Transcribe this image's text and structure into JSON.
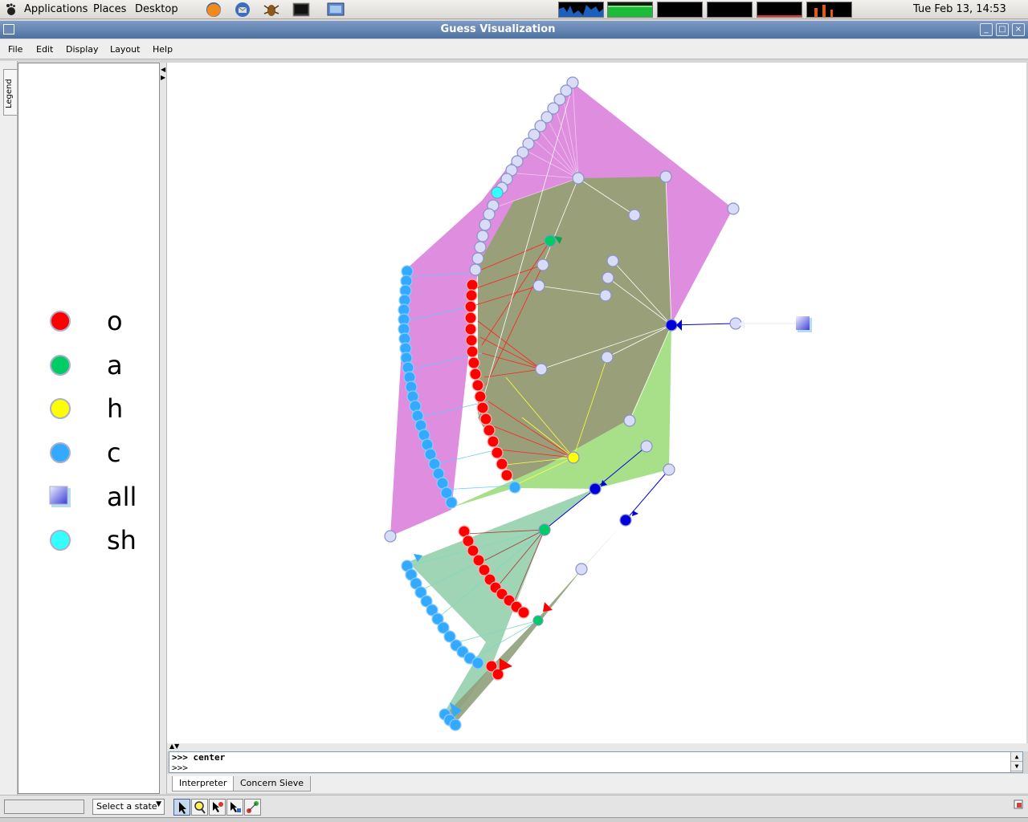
{
  "panel": {
    "menus": [
      "Applications",
      "Places",
      "Desktop"
    ],
    "clock": "Tue Feb 13, 14:53",
    "launchers": [
      "firefox-icon",
      "thunderbird-icon",
      "bug-icon",
      "terminal-icon",
      "screen-icon"
    ]
  },
  "window": {
    "title": "Guess Visualization"
  },
  "menubar": {
    "items": [
      "File",
      "Edit",
      "Display",
      "Layout",
      "Help"
    ]
  },
  "legend": {
    "tab_label": "Legend",
    "entries": [
      {
        "label": "o",
        "color": "#ff0000",
        "shape": "circle"
      },
      {
        "label": "a",
        "color": "#00cc66",
        "shape": "circle"
      },
      {
        "label": "h",
        "color": "#ffff00",
        "shape": "circle"
      },
      {
        "label": "c",
        "color": "#33aaff",
        "shape": "circle"
      },
      {
        "label": "all",
        "color": "#6a6ae6",
        "shape": "square"
      },
      {
        "label": "sh",
        "color": "#33ffff",
        "shape": "circle"
      }
    ]
  },
  "console": {
    "lines": [
      ">>> center",
      ">>>"
    ]
  },
  "tabs": [
    "Interpreter",
    "Concern Sieve"
  ],
  "statusbar": {
    "state_select": "Select a state"
  },
  "colors": {
    "cluster_pink": "#dd88dd",
    "cluster_olive": "#9aa27a",
    "cluster_green": "#a8e08a",
    "cluster_teal": "#9fd4b4",
    "node_default": "#d8dcf6",
    "node_blue": "#0000dd"
  }
}
